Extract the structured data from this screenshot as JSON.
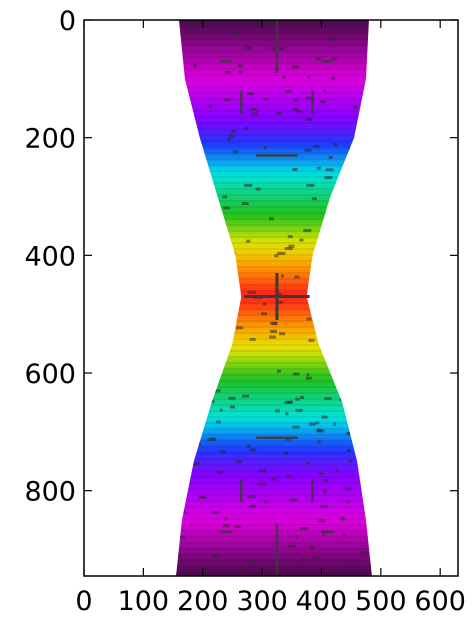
{
  "chart_data": {
    "type": "heatmap",
    "title": "",
    "xlabel": "",
    "ylabel": "",
    "xlim": [
      0,
      630
    ],
    "ylim": [
      945,
      0
    ],
    "xticks": [
      "0",
      "100",
      "200",
      "300",
      "400",
      "500",
      "600"
    ],
    "yticks": [
      "0",
      "200",
      "400",
      "600",
      "800"
    ],
    "colormap": "gist_rainbow-like (purple to red)",
    "colors": {
      "dark_purple": "#4a0a4a",
      "magenta": "#e000e0",
      "violet": "#8c00ff",
      "blue": "#1a3cff",
      "cyan": "#00e6e6",
      "green": "#1fc21f",
      "yellow": "#e6e600",
      "orange": "#ff9a00",
      "red": "#ff1a1a",
      "marker": "#3a3a3a"
    },
    "shape": {
      "description": "hourglass / bow-tie intensity region",
      "y": [
        0,
        100,
        200,
        300,
        400,
        470,
        550,
        650,
        750,
        850,
        945
      ],
      "x_left": [
        160,
        170,
        195,
        225,
        255,
        265,
        250,
        215,
        185,
        165,
        155
      ],
      "x_right": [
        480,
        475,
        455,
        415,
        385,
        375,
        395,
        435,
        460,
        475,
        485
      ]
    },
    "center_marker": {
      "x": 325,
      "y": 470
    },
    "color_stops": [
      {
        "y": 0,
        "level": 0.0
      },
      {
        "y": 100,
        "level": 0.1
      },
      {
        "y": 180,
        "level": 0.25
      },
      {
        "y": 260,
        "level": 0.45
      },
      {
        "y": 340,
        "level": 0.6
      },
      {
        "y": 400,
        "level": 0.75
      },
      {
        "y": 470,
        "level": 1.0
      },
      {
        "y": 540,
        "level": 0.75
      },
      {
        "y": 600,
        "level": 0.6
      },
      {
        "y": 680,
        "level": 0.45
      },
      {
        "y": 760,
        "level": 0.25
      },
      {
        "y": 850,
        "level": 0.1
      },
      {
        "y": 945,
        "level": 0.0
      }
    ]
  }
}
